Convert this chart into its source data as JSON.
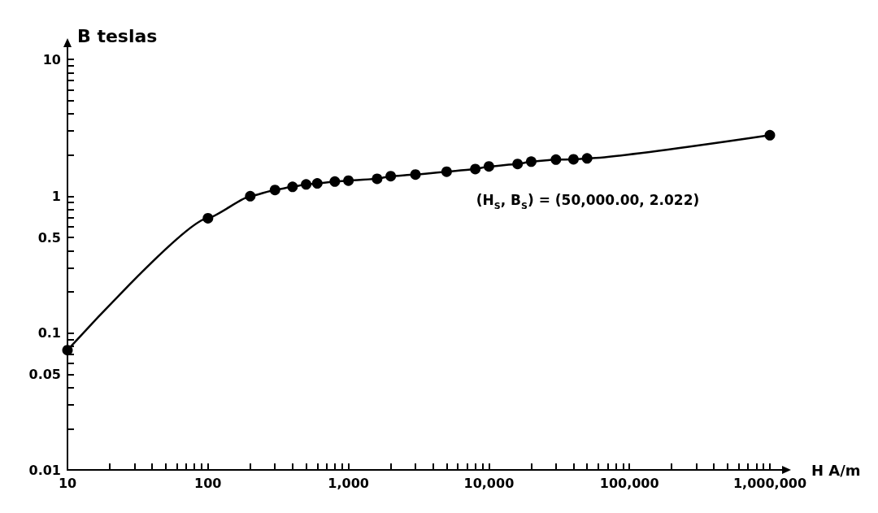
{
  "chart_data": {
    "type": "line",
    "xlabel": "H A/m",
    "ylabel": "B teslas",
    "log": "xy",
    "grid": false,
    "marker": "circle",
    "line_style": "solid",
    "xlim": [
      10,
      1000000
    ],
    "ylim": [
      0.01,
      10
    ],
    "xticks": [
      {
        "value": 10,
        "label": "10"
      },
      {
        "value": 20,
        "label": null
      },
      {
        "value": 30,
        "label": null
      },
      {
        "value": 40,
        "label": null
      },
      {
        "value": 50,
        "label": null
      },
      {
        "value": 60,
        "label": null
      },
      {
        "value": 70,
        "label": null
      },
      {
        "value": 80,
        "label": null
      },
      {
        "value": 90,
        "label": null
      },
      {
        "value": 100,
        "label": "100"
      },
      {
        "value": 200,
        "label": null
      },
      {
        "value": 300,
        "label": null
      },
      {
        "value": 400,
        "label": null
      },
      {
        "value": 500,
        "label": null
      },
      {
        "value": 600,
        "label": null
      },
      {
        "value": 700,
        "label": null
      },
      {
        "value": 800,
        "label": null
      },
      {
        "value": 900,
        "label": null
      },
      {
        "value": 1000,
        "label": "1,000"
      },
      {
        "value": 2000,
        "label": null
      },
      {
        "value": 3000,
        "label": null
      },
      {
        "value": 4000,
        "label": null
      },
      {
        "value": 5000,
        "label": null
      },
      {
        "value": 6000,
        "label": null
      },
      {
        "value": 7000,
        "label": null
      },
      {
        "value": 8000,
        "label": null
      },
      {
        "value": 9000,
        "label": null
      },
      {
        "value": 10000,
        "label": "10,000"
      },
      {
        "value": 20000,
        "label": null
      },
      {
        "value": 30000,
        "label": null
      },
      {
        "value": 40000,
        "label": null
      },
      {
        "value": 50000,
        "label": null
      },
      {
        "value": 60000,
        "label": null
      },
      {
        "value": 70000,
        "label": null
      },
      {
        "value": 80000,
        "label": null
      },
      {
        "value": 90000,
        "label": null
      },
      {
        "value": 100000,
        "label": "100,000"
      },
      {
        "value": 200000,
        "label": null
      },
      {
        "value": 300000,
        "label": null
      },
      {
        "value": 400000,
        "label": null
      },
      {
        "value": 500000,
        "label": null
      },
      {
        "value": 600000,
        "label": null
      },
      {
        "value": 700000,
        "label": null
      },
      {
        "value": 800000,
        "label": null
      },
      {
        "value": 900000,
        "label": null
      },
      {
        "value": 1000000,
        "label": "1,000,000"
      }
    ],
    "yticks": [
      0.01,
      {
        "value": 0.02,
        "label": null
      },
      {
        "value": 0.03,
        "label": null
      },
      {
        "value": 0.04,
        "label": null
      },
      0.05,
      {
        "value": 0.06,
        "label": null
      },
      {
        "value": 0.07,
        "label": null
      },
      {
        "value": 0.08,
        "label": null
      },
      {
        "value": 0.09,
        "label": null
      },
      0.1,
      {
        "value": 0.2,
        "label": null
      },
      {
        "value": 0.3,
        "label": null
      },
      {
        "value": 0.4,
        "label": null
      },
      0.5,
      {
        "value": 0.6,
        "label": null
      },
      {
        "value": 0.7,
        "label": null
      },
      {
        "value": 0.8,
        "label": null
      },
      {
        "value": 0.9,
        "label": null
      },
      1,
      {
        "value": 2,
        "label": null
      },
      {
        "value": 3,
        "label": null
      },
      {
        "value": 4,
        "label": null
      },
      {
        "value": 5,
        "label": null
      },
      {
        "value": 6,
        "label": null
      },
      {
        "value": 7,
        "label": null
      },
      {
        "value": 8,
        "label": null
      },
      {
        "value": 9,
        "label": null
      },
      10
    ],
    "series": [
      {
        "color": "#000000",
        "x": [
          10,
          100,
          200,
          300,
          400,
          500,
          600,
          800,
          1000,
          1600,
          2000,
          3000,
          5000,
          8000,
          10000,
          16000,
          20000,
          30000,
          40000,
          50000,
          1000000
        ],
        "values": [
          0.075,
          0.69,
          1.0,
          1.11,
          1.17,
          1.22,
          1.24,
          1.28,
          1.3,
          1.34,
          1.4,
          1.44,
          1.51,
          1.58,
          1.65,
          1.72,
          1.79,
          1.85,
          1.86,
          1.89,
          2.79
        ]
      }
    ],
    "annotations": [
      "(H$_{S}$, B$_{S}$) = (50,000.00, 2.022)"
    ]
  }
}
